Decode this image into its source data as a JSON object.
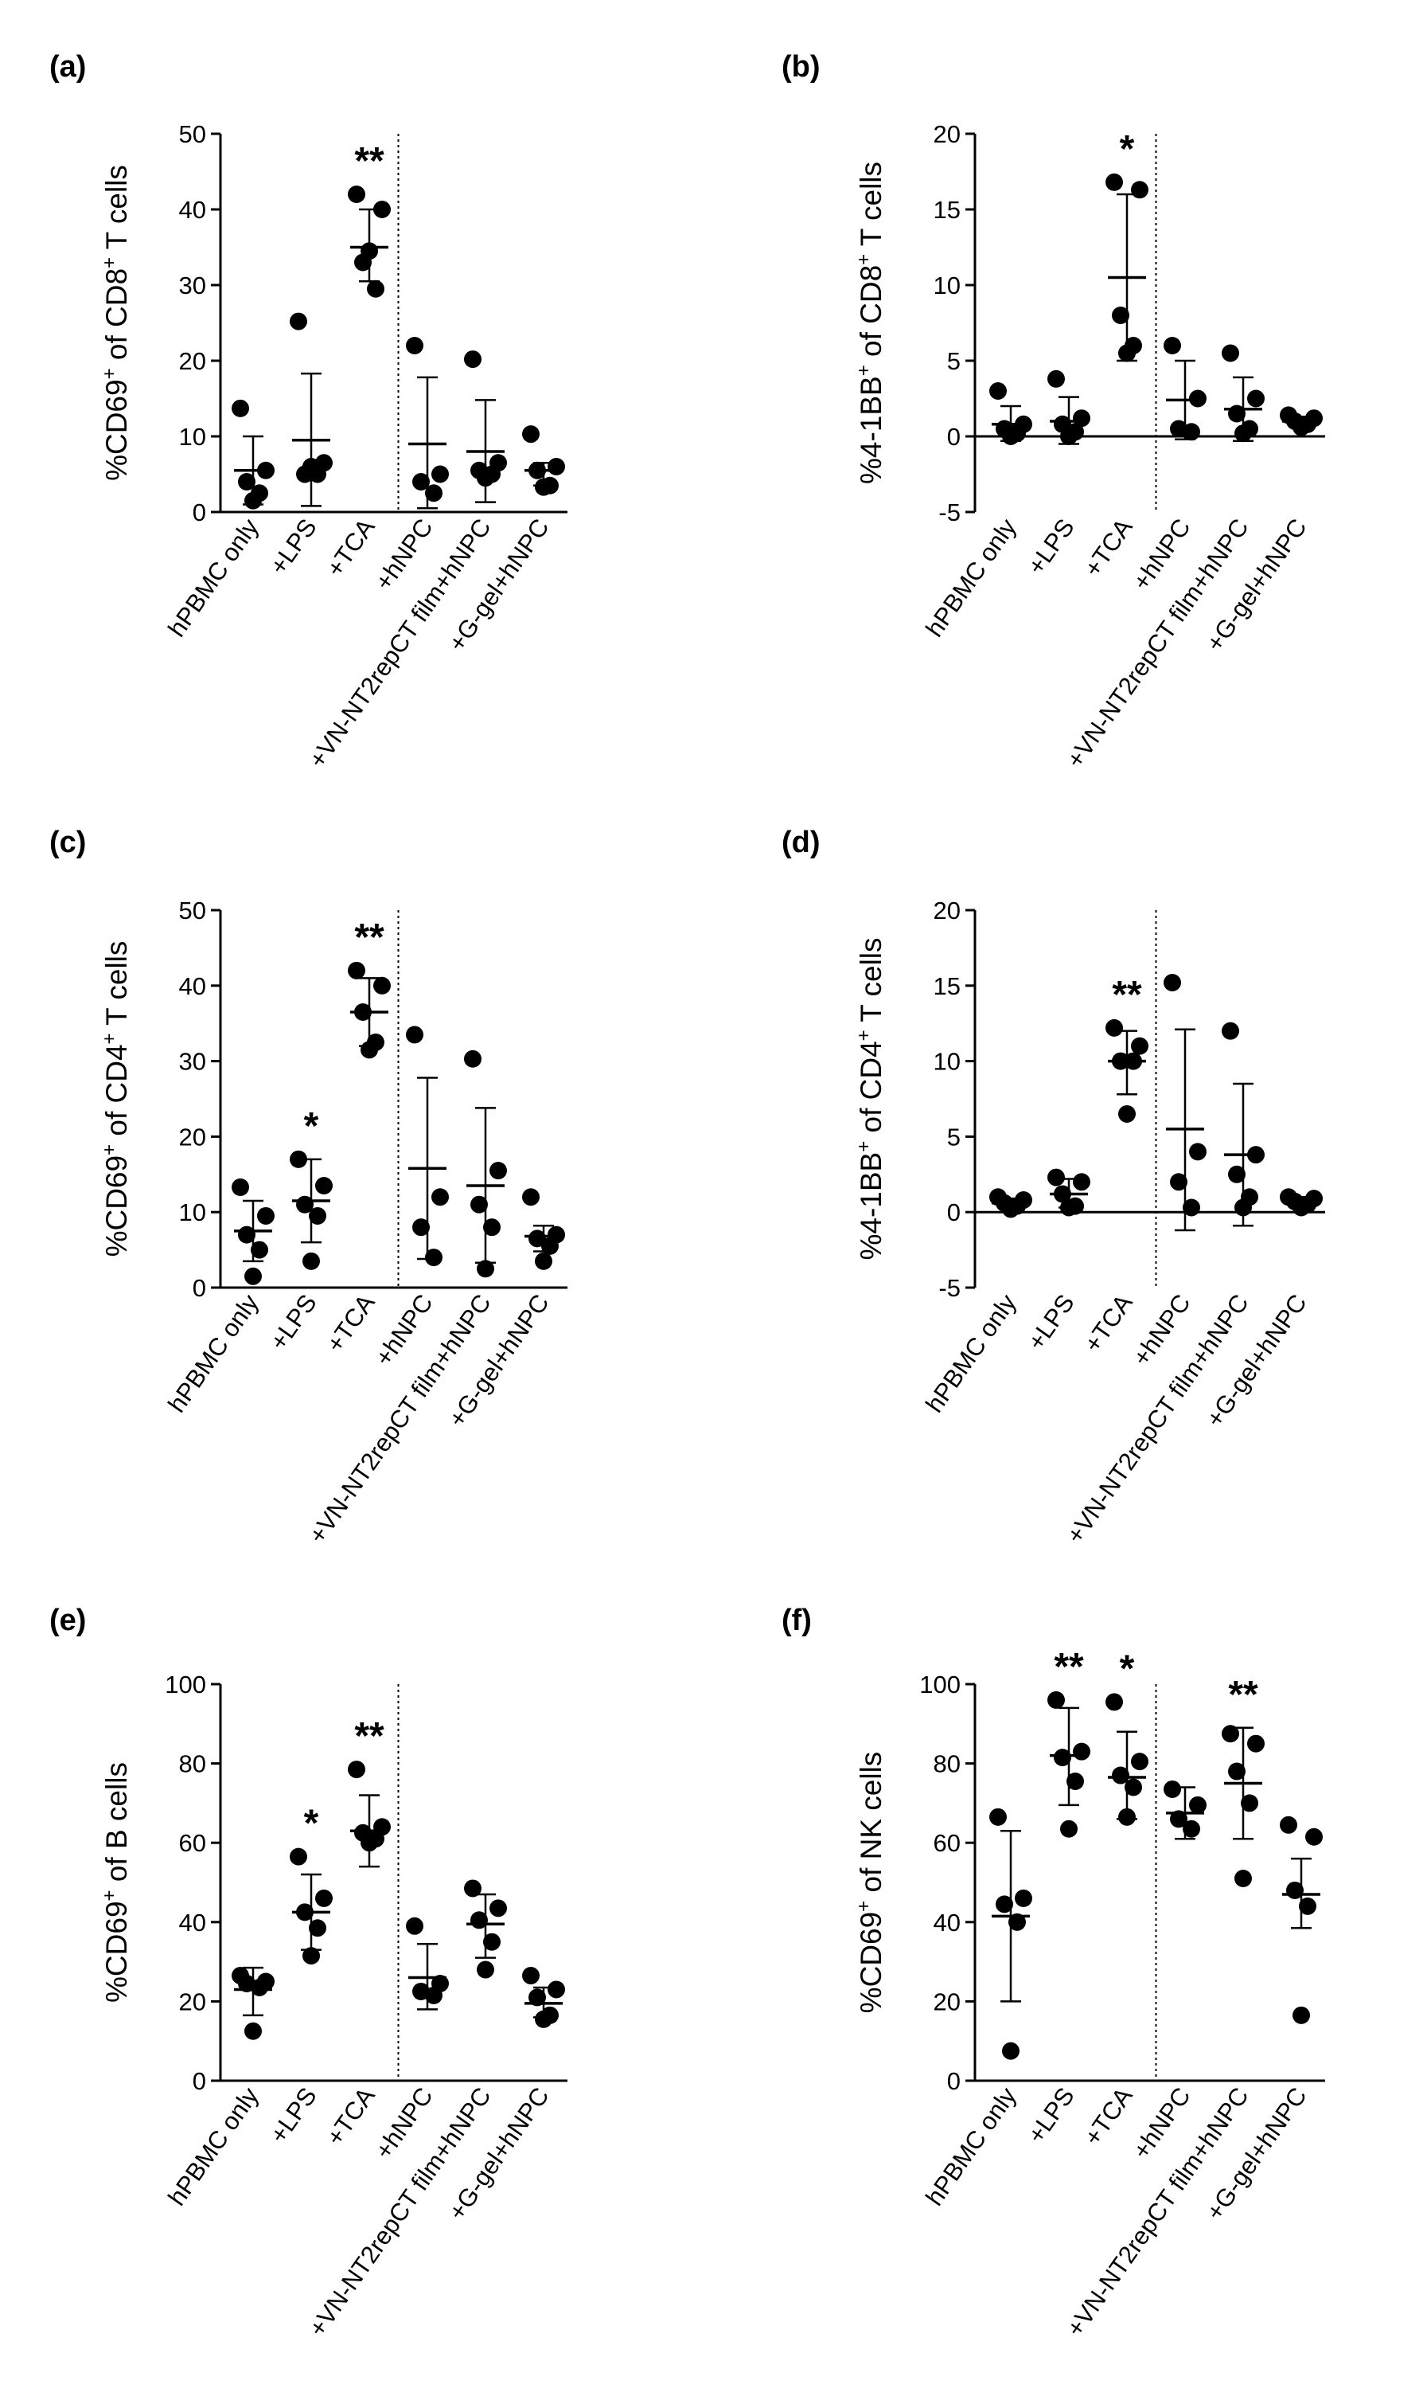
{
  "chart_data": [
    {
      "type": "scatter",
      "panel": "(a)",
      "ylabel_parts": [
        [
          "%CD69",
          false
        ],
        [
          "+",
          true
        ],
        [
          " of CD8",
          false
        ],
        [
          "+",
          true
        ],
        [
          " T cells",
          false
        ]
      ],
      "ylim": [
        0,
        50
      ],
      "yticks": [
        0,
        10,
        20,
        30,
        40,
        50
      ],
      "categories": [
        "hPBMC only",
        "+LPS",
        "+TCA",
        "+hNPC",
        "+VN-NT2repCT film+hNPC",
        "+G-gel+hNPC"
      ],
      "groups": [
        {
          "points": [
            13.7,
            5.5,
            4.0,
            2.5,
            1.5
          ],
          "mean": 5.5,
          "sd_low": 1.0,
          "sd_high": 10.0,
          "sig": ""
        },
        {
          "points": [
            25.2,
            6.5,
            5.0,
            5.0,
            6.0
          ],
          "mean": 9.5,
          "sd_low": 0.8,
          "sd_high": 18.3,
          "sig": ""
        },
        {
          "points": [
            42.0,
            40.0,
            33.0,
            29.5,
            34.5
          ],
          "mean": 35.0,
          "sd_low": 30.5,
          "sd_high": 40.0,
          "sig": "**"
        },
        {
          "points": [
            22.0,
            5.0,
            4.0,
            2.5
          ],
          "mean": 9.0,
          "sd_low": 0.5,
          "sd_high": 17.8,
          "sig": ""
        },
        {
          "points": [
            20.2,
            6.5,
            5.5,
            5.0,
            4.5
          ],
          "mean": 8.0,
          "sd_low": 1.3,
          "sd_high": 14.8,
          "sig": ""
        },
        {
          "points": [
            10.3,
            6.0,
            5.5,
            3.5,
            3.3
          ],
          "mean": 5.5,
          "sd_low": 3.5,
          "sd_high": 6.5,
          "sig": ""
        }
      ],
      "divider_after_category": 3
    },
    {
      "type": "scatter",
      "panel": "(b)",
      "ylabel_parts": [
        [
          "%4-1BB",
          false
        ],
        [
          "+",
          true
        ],
        [
          " of CD8",
          false
        ],
        [
          "+",
          true
        ],
        [
          " T cells",
          false
        ]
      ],
      "ylim": [
        -5,
        20
      ],
      "yticks": [
        -5,
        0,
        5,
        10,
        15,
        20
      ],
      "categories": [
        "hPBMC only",
        "+LPS",
        "+TCA",
        "+hNPC",
        "+VN-NT2repCT film+hNPC",
        "+G-gel+hNPC"
      ],
      "groups": [
        {
          "points": [
            3.0,
            0.8,
            0.5,
            0.2,
            0.0
          ],
          "mean": 0.8,
          "sd_low": -0.3,
          "sd_high": 2.0,
          "sig": ""
        },
        {
          "points": [
            3.8,
            1.2,
            0.8,
            0.3,
            0.0
          ],
          "mean": 1.0,
          "sd_low": -0.5,
          "sd_high": 2.6,
          "sig": ""
        },
        {
          "points": [
            16.8,
            16.3,
            8.0,
            6.0,
            5.5
          ],
          "mean": 10.5,
          "sd_low": 5.0,
          "sd_high": 16.0,
          "sig": "*"
        },
        {
          "points": [
            6.0,
            2.5,
            0.5,
            0.3
          ],
          "mean": 2.4,
          "sd_low": -0.2,
          "sd_high": 5.0,
          "sig": ""
        },
        {
          "points": [
            5.5,
            2.5,
            1.5,
            0.5,
            0.2
          ],
          "mean": 1.8,
          "sd_low": -0.3,
          "sd_high": 3.9,
          "sig": ""
        },
        {
          "points": [
            1.4,
            1.2,
            1.0,
            0.8,
            0.6
          ],
          "mean": 1.0,
          "sd_low": 0.7,
          "sd_high": 1.3,
          "sig": ""
        }
      ],
      "divider_after_category": 3
    },
    {
      "type": "scatter",
      "panel": "(c)",
      "ylabel_parts": [
        [
          "%CD69",
          false
        ],
        [
          "+",
          true
        ],
        [
          " of CD4",
          false
        ],
        [
          "+",
          true
        ],
        [
          " T cells",
          false
        ]
      ],
      "ylim": [
        0,
        50
      ],
      "yticks": [
        0,
        10,
        20,
        30,
        40,
        50
      ],
      "categories": [
        "hPBMC only",
        "+LPS",
        "+TCA",
        "+hNPC",
        "+VN-NT2repCT film+hNPC",
        "+G-gel+hNPC"
      ],
      "groups": [
        {
          "points": [
            13.3,
            9.5,
            7.0,
            5.0,
            1.5
          ],
          "mean": 7.5,
          "sd_low": 3.5,
          "sd_high": 11.5,
          "sig": ""
        },
        {
          "points": [
            17.0,
            13.5,
            11.0,
            9.5,
            3.5
          ],
          "mean": 11.5,
          "sd_low": 6.0,
          "sd_high": 17.0,
          "sig": "*"
        },
        {
          "points": [
            42.0,
            40.0,
            36.5,
            32.5,
            31.5
          ],
          "mean": 36.5,
          "sd_low": 32.0,
          "sd_high": 41.0,
          "sig": "**"
        },
        {
          "points": [
            33.5,
            12.0,
            8.0,
            4.0
          ],
          "mean": 15.8,
          "sd_low": 3.8,
          "sd_high": 27.8,
          "sig": ""
        },
        {
          "points": [
            30.3,
            15.5,
            11.0,
            8.0,
            2.5
          ],
          "mean": 13.5,
          "sd_low": 3.3,
          "sd_high": 23.8,
          "sig": ""
        },
        {
          "points": [
            12.0,
            7.0,
            6.5,
            5.5,
            3.5
          ],
          "mean": 6.8,
          "sd_low": 4.8,
          "sd_high": 8.2,
          "sig": ""
        }
      ],
      "divider_after_category": 3
    },
    {
      "type": "scatter",
      "panel": "(d)",
      "ylabel_parts": [
        [
          "%4-1BB",
          false
        ],
        [
          "+",
          true
        ],
        [
          " of CD4",
          false
        ],
        [
          "+",
          true
        ],
        [
          " T cells",
          false
        ]
      ],
      "ylim": [
        -5,
        20
      ],
      "yticks": [
        -5,
        0,
        5,
        10,
        15,
        20
      ],
      "categories": [
        "hPBMC only",
        "+LPS",
        "+TCA",
        "+hNPC",
        "+VN-NT2repCT film+hNPC",
        "+G-gel+hNPC"
      ],
      "groups": [
        {
          "points": [
            1.0,
            0.8,
            0.6,
            0.4,
            0.2
          ],
          "mean": 0.6,
          "sd_low": 0.3,
          "sd_high": 0.9,
          "sig": ""
        },
        {
          "points": [
            2.3,
            2.0,
            1.2,
            0.4,
            0.3
          ],
          "mean": 1.2,
          "sd_low": 0.3,
          "sd_high": 2.2,
          "sig": ""
        },
        {
          "points": [
            12.2,
            11.0,
            10.0,
            10.0,
            6.5
          ],
          "mean": 10.0,
          "sd_low": 7.8,
          "sd_high": 12.0,
          "sig": "**"
        },
        {
          "points": [
            15.2,
            4.0,
            2.0,
            0.3
          ],
          "mean": 5.5,
          "sd_low": -1.2,
          "sd_high": 12.1,
          "sig": ""
        },
        {
          "points": [
            12.0,
            3.8,
            2.5,
            1.0,
            0.3
          ],
          "mean": 3.8,
          "sd_low": -0.9,
          "sd_high": 8.5,
          "sig": ""
        },
        {
          "points": [
            1.0,
            0.9,
            0.7,
            0.5,
            0.3
          ],
          "mean": 0.7,
          "sd_low": 0.3,
          "sd_high": 1.0,
          "sig": ""
        }
      ],
      "divider_after_category": 3
    },
    {
      "type": "scatter",
      "panel": "(e)",
      "ylabel_parts": [
        [
          "%CD69",
          false
        ],
        [
          "+",
          true
        ],
        [
          " of B cells",
          false
        ]
      ],
      "ylim": [
        0,
        100
      ],
      "yticks": [
        0,
        20,
        40,
        60,
        80,
        100
      ],
      "categories": [
        "hPBMC only",
        "+LPS",
        "+TCA",
        "+hNPC",
        "+VN-NT2repCT film+hNPC",
        "+G-gel+hNPC"
      ],
      "groups": [
        {
          "points": [
            26.5,
            25.0,
            24.5,
            23.5,
            12.5
          ],
          "mean": 23.0,
          "sd_low": 16.5,
          "sd_high": 28.5,
          "sig": ""
        },
        {
          "points": [
            56.5,
            46.0,
            42.5,
            38.5,
            31.5
          ],
          "mean": 42.5,
          "sd_low": 33.0,
          "sd_high": 52.0,
          "sig": "*"
        },
        {
          "points": [
            78.5,
            64.0,
            62.5,
            61.0,
            60.0
          ],
          "mean": 63.0,
          "sd_low": 54.0,
          "sd_high": 72.0,
          "sig": "**"
        },
        {
          "points": [
            39.0,
            24.5,
            22.5,
            21.5
          ],
          "mean": 26.0,
          "sd_low": 18.0,
          "sd_high": 34.5,
          "sig": ""
        },
        {
          "points": [
            48.5,
            43.5,
            40.5,
            35.0,
            28.0
          ],
          "mean": 39.5,
          "sd_low": 31.0,
          "sd_high": 47.0,
          "sig": ""
        },
        {
          "points": [
            26.5,
            23.0,
            21.0,
            16.5,
            15.5
          ],
          "mean": 19.5,
          "sd_low": 16.0,
          "sd_high": 23.5,
          "sig": ""
        }
      ],
      "divider_after_category": 3
    },
    {
      "type": "scatter",
      "panel": "(f)",
      "ylabel_parts": [
        [
          "%CD69",
          false
        ],
        [
          "+",
          true
        ],
        [
          " of NK cells",
          false
        ]
      ],
      "ylim": [
        0,
        100
      ],
      "yticks": [
        0,
        20,
        40,
        60,
        80,
        100
      ],
      "categories": [
        "hPBMC only",
        "+LPS",
        "+TCA",
        "+hNPC",
        "+VN-NT2repCT film+hNPC",
        "+G-gel+hNPC"
      ],
      "groups": [
        {
          "points": [
            66.5,
            46.0,
            44.5,
            40.0,
            7.5
          ],
          "mean": 41.5,
          "sd_low": 20.0,
          "sd_high": 63.0,
          "sig": ""
        },
        {
          "points": [
            96.0,
            83.0,
            81.5,
            75.5,
            63.5
          ],
          "mean": 82.0,
          "sd_low": 69.5,
          "sd_high": 94.0,
          "sig": "**"
        },
        {
          "points": [
            95.5,
            80.5,
            77.0,
            74.0,
            66.5
          ],
          "mean": 76.5,
          "sd_low": 66.0,
          "sd_high": 88.0,
          "sig": "*"
        },
        {
          "points": [
            73.5,
            69.5,
            66.0,
            63.5
          ],
          "mean": 67.5,
          "sd_low": 61.0,
          "sd_high": 74.0,
          "sig": ""
        },
        {
          "points": [
            87.5,
            85.0,
            78.0,
            70.0,
            51.0
          ],
          "mean": 75.0,
          "sd_low": 61.0,
          "sd_high": 89.0,
          "sig": "**"
        },
        {
          "points": [
            64.5,
            61.5,
            48.0,
            44.0,
            16.5
          ],
          "mean": 47.0,
          "sd_low": 38.5,
          "sd_high": 56.0,
          "sig": ""
        }
      ],
      "divider_after_category": 3
    }
  ]
}
